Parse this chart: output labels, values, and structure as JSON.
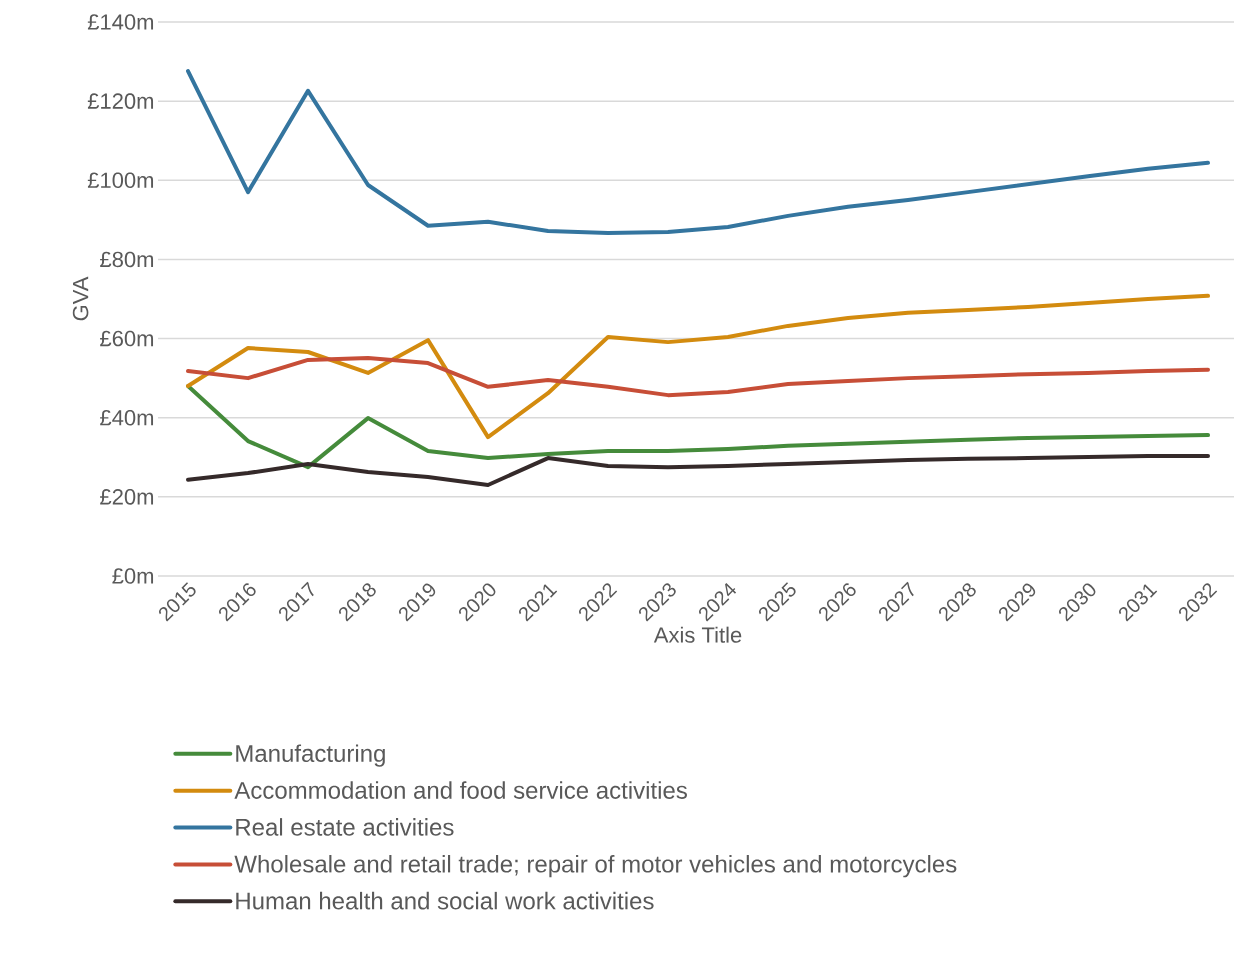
{
  "chart_data": {
    "type": "line",
    "xlabel": "Axis Title",
    "ylabel": "GVA",
    "categories": [
      "2015",
      "2016",
      "2017",
      "2018",
      "2019",
      "2020",
      "2021",
      "2022",
      "2023",
      "2024",
      "2025",
      "2026",
      "2027",
      "2028",
      "2029",
      "2030",
      "2031",
      "2032"
    ],
    "series": [
      {
        "name": "Manufacturing",
        "color": "#458b3b",
        "values": [
          48,
          34.1,
          27.5,
          39.9,
          31.6,
          29.8,
          30.8,
          31.6,
          31.6,
          32.1,
          32.9,
          33.4,
          33.9,
          34.4,
          34.9,
          35.1,
          35.4,
          35.6
        ]
      },
      {
        "name": "Accommodation and food service activities",
        "color": "#d38b0f",
        "values": [
          48,
          57.6,
          56.6,
          51.3,
          59.6,
          35.1,
          46.2,
          60.4,
          59.1,
          60.4,
          63.2,
          65.2,
          66.5,
          67.2,
          68,
          69,
          70,
          70.8
        ]
      },
      {
        "name": "Real estate activities",
        "color": "#34759f",
        "values": [
          127.6,
          97,
          122.6,
          98.8,
          88.5,
          89.5,
          87.2,
          86.7,
          86.9,
          88.2,
          91,
          93.3,
          95,
          97,
          99,
          101,
          102.9,
          104.4
        ]
      },
      {
        "name": "Wholesale and retail trade; repair of motor vehicles and motorcycles",
        "color": "#c74e37",
        "values": [
          51.8,
          50,
          54.6,
          55.1,
          53.8,
          47.8,
          49.5,
          47.8,
          45.7,
          46.5,
          48.5,
          49.3,
          50,
          50.5,
          51,
          51.3,
          51.8,
          52.1
        ]
      },
      {
        "name": "Human health and social work activities",
        "color": "#352a2a",
        "values": [
          24.3,
          26,
          28.3,
          26.3,
          25,
          23,
          29.8,
          27.8,
          27.5,
          27.8,
          28.3,
          28.8,
          29.3,
          29.6,
          29.8,
          30.1,
          30.3,
          30.3
        ]
      }
    ],
    "ylim": [
      0,
      140
    ],
    "yticks": [
      {
        "value": 0,
        "label": "£0m"
      },
      {
        "value": 20,
        "label": "£20m"
      },
      {
        "value": 40,
        "label": "£40m"
      },
      {
        "value": 60,
        "label": "£60m"
      },
      {
        "value": 80,
        "label": "£80m"
      },
      {
        "value": 100,
        "label": "£100m"
      },
      {
        "value": 120,
        "label": "£120m"
      },
      {
        "value": 140,
        "label": "£140m"
      }
    ],
    "grid": "y",
    "legend": "bottom",
    "marker": "none",
    "line_style": "solid"
  }
}
